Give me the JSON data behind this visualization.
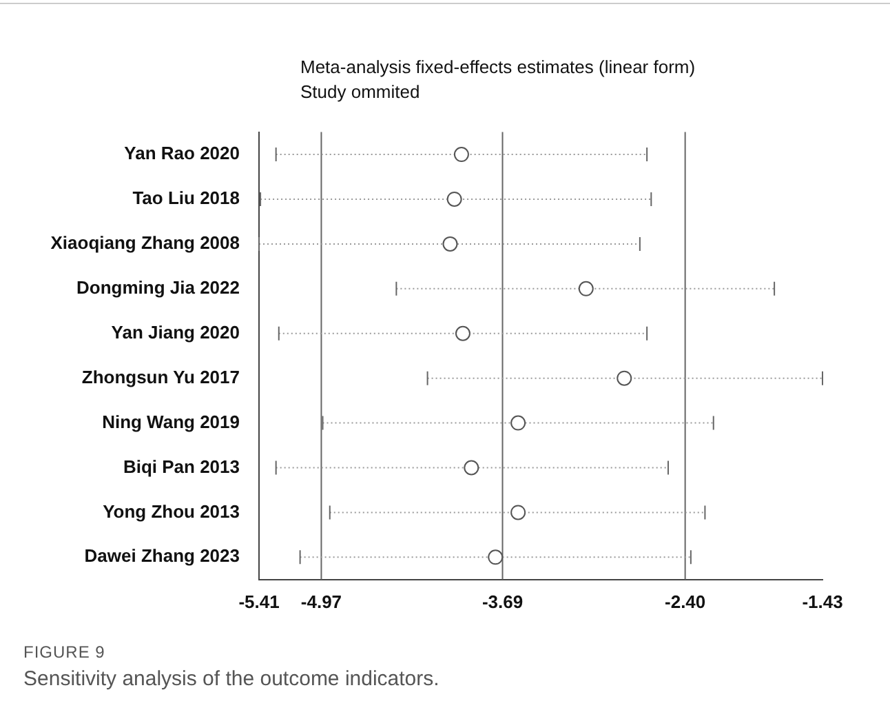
{
  "chart_data": {
    "type": "scatter",
    "orientation": "horizontal",
    "title": "Meta-analysis fixed-effects estimates (linear form)",
    "subtitle": "Study ommited",
    "categories": [
      "Yan Rao 2020",
      "Tao Liu 2018",
      "Xiaoqiang Zhang 2008",
      "Dongming Jia 2022",
      "Yan Jiang 2020",
      "Zhongsun Yu 2017",
      "Ning Wang 2019",
      "Biqi Pan 2013",
      "Yong Zhou 2013",
      "Dawei Zhang 2023"
    ],
    "values": [
      -3.98,
      -4.03,
      -4.06,
      -3.1,
      -3.97,
      -2.83,
      -3.58,
      -3.91,
      -3.58,
      -3.74
    ],
    "errors": [
      [
        -5.29,
        -2.67
      ],
      [
        -5.4,
        -2.64
      ],
      [
        -5.41,
        -2.72
      ],
      [
        -4.44,
        -1.77
      ],
      [
        -5.27,
        -2.67
      ],
      [
        -4.22,
        -1.43
      ],
      [
        -4.96,
        -2.2
      ],
      [
        -5.29,
        -2.52
      ],
      [
        -4.91,
        -2.26
      ],
      [
        -5.12,
        -2.36
      ]
    ],
    "color": "#555555",
    "marker": "circle",
    "xlim": [
      -5.41,
      -1.43
    ],
    "xticks": [
      -5.41,
      -4.97,
      -3.69,
      {
        "value": -2.4,
        "label": "-2.40"
      },
      -1.43
    ],
    "ref_lines": [
      {
        "axis": "x",
        "value": -4.97,
        "color": "#666666"
      },
      {
        "axis": "x",
        "value": -3.69,
        "color": "#666666"
      },
      {
        "axis": "x",
        "value": -2.4,
        "color": "#666666"
      }
    ],
    "annotations": [
      "FIGURE 9",
      "Sensitivity analysis of the outcome indicators."
    ]
  }
}
